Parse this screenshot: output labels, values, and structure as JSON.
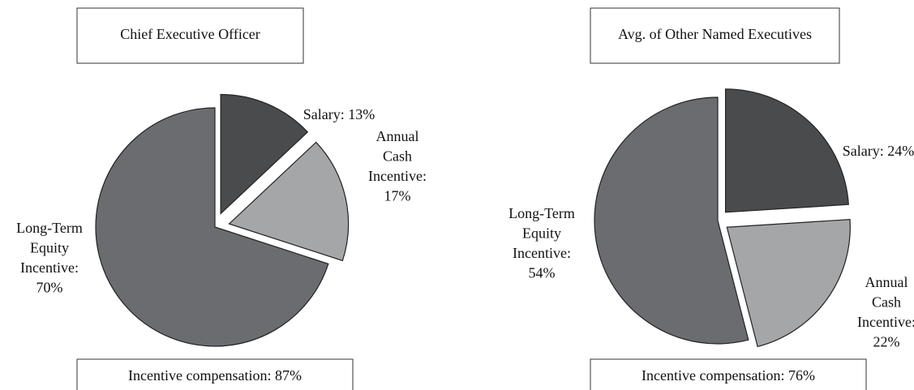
{
  "chart_data": [
    {
      "type": "pie",
      "title": "Chief Executive Officer",
      "values": [
        13,
        17,
        70
      ],
      "value_labels": [
        [
          "Salary: 13%"
        ],
        [
          "Annual",
          "Cash",
          "Incentive:",
          "17%"
        ],
        [
          "Long-Term",
          "Equity",
          "Incentive:",
          "70%"
        ]
      ],
      "colors": [
        "#4a4b4d",
        "#a5a6a8",
        "#6b6c70"
      ],
      "note": "Incentive compensation: 87%"
    },
    {
      "type": "pie",
      "title": "Avg. of Other Named Executives",
      "values": [
        24,
        22,
        54
      ],
      "value_labels": [
        [
          "Salary: 24%"
        ],
        [
          "Annual",
          "Cash",
          "Incentive:",
          "22%"
        ],
        [
          "Long-Term",
          "Equity",
          "Incentive:",
          "54%"
        ]
      ],
      "colors": [
        "#4a4b4d",
        "#a5a6a8",
        "#6b6c70"
      ],
      "note": "Incentive compensation: 76%"
    }
  ]
}
